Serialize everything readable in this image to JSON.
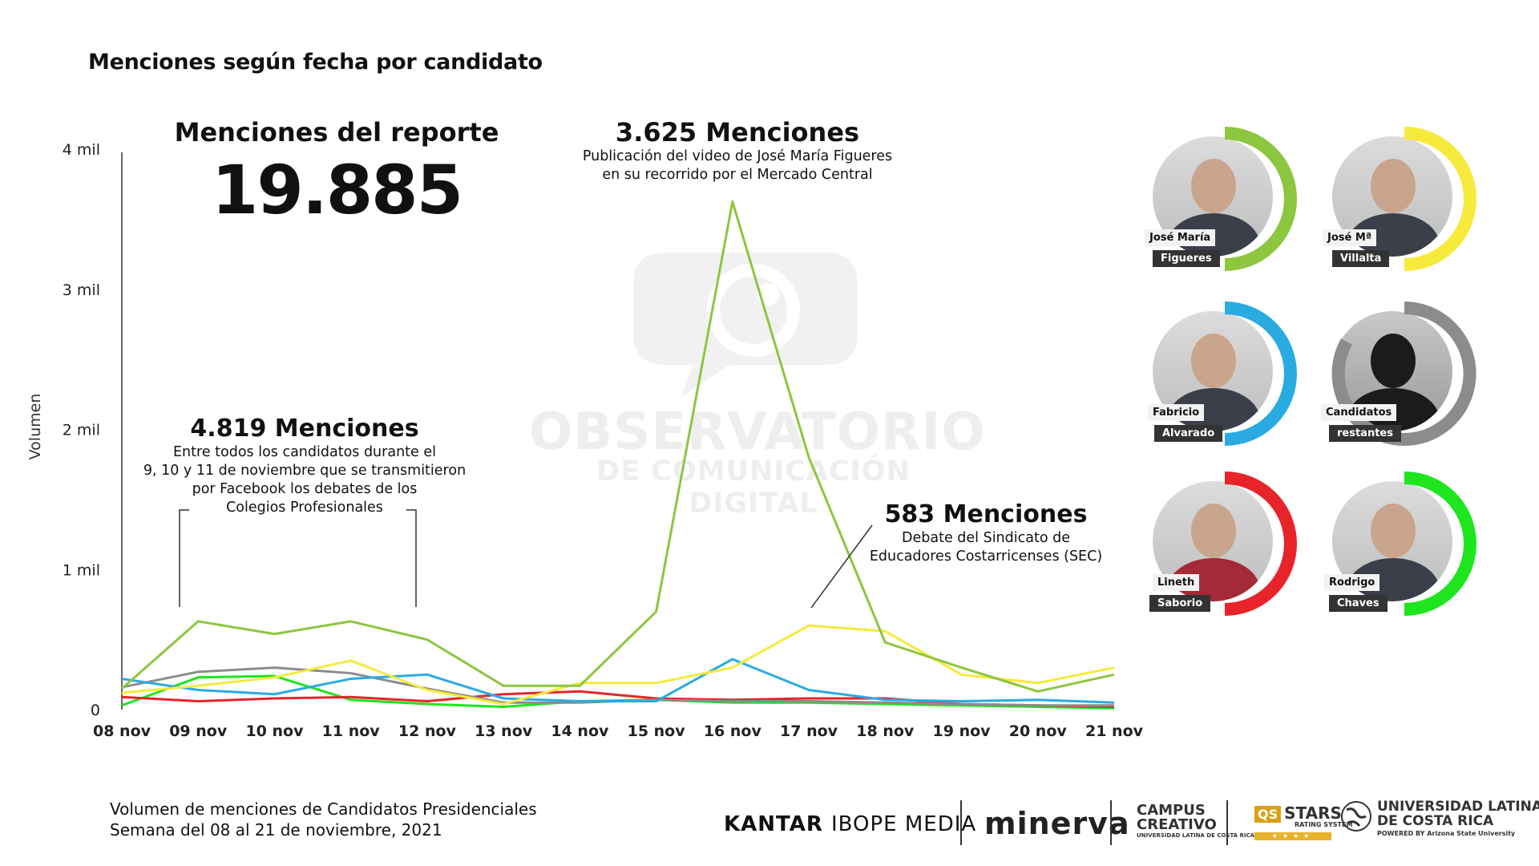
{
  "title": "Menciones según fecha por candidato",
  "total": {
    "label": "Menciones del reporte",
    "value": "19.885"
  },
  "annotations": {
    "peak": {
      "heading": "3.625 Menciones",
      "lines": [
        "Publicación del video de José María Figueres",
        "en su recorrido por el Mercado Central"
      ]
    },
    "debates": {
      "heading": "4.819 Menciones",
      "lines": [
        "Entre todos los candidatos durante el",
        "9, 10 y 11 de noviembre que se transmitieron",
        "por Facebook los debates de los",
        "Colegios Profesionales"
      ]
    },
    "sec": {
      "heading": "583 Menciones",
      "lines": [
        "Debate del Sindicato de",
        "Educadores Costarricenses (SEC)"
      ]
    }
  },
  "watermark": {
    "line1": "OBSERVATORIO",
    "line2": "DE COMUNICACIÓN DIGITAL"
  },
  "chart_data": {
    "type": "line",
    "ylabel": "Volumen",
    "ylim": [
      0,
      4000
    ],
    "yticks": [
      0,
      1000,
      2000,
      3000,
      4000
    ],
    "ytick_labels": [
      "0",
      "1 mil",
      "2 mil",
      "3 mil",
      "4 mil"
    ],
    "categories": [
      "08 nov",
      "09 nov",
      "10 nov",
      "11 nov",
      "12 nov",
      "13 nov",
      "14 nov",
      "15 nov",
      "16 nov",
      "17 nov",
      "18 nov",
      "19 nov",
      "20 nov",
      "21 nov"
    ],
    "grid": false,
    "series": [
      {
        "name": "José María Figueres",
        "color": "#8dc63f",
        "values": [
          150,
          630,
          540,
          630,
          500,
          170,
          170,
          700,
          3625,
          1800,
          480,
          300,
          130,
          250
        ]
      },
      {
        "name": "José Mª Villalta",
        "color": "#f6ea3c",
        "values": [
          120,
          170,
          230,
          350,
          140,
          40,
          190,
          190,
          300,
          600,
          560,
          250,
          190,
          300
        ]
      },
      {
        "name": "Fabricio Alvarado",
        "color": "#29abe2",
        "values": [
          220,
          140,
          110,
          220,
          250,
          80,
          60,
          60,
          360,
          140,
          70,
          60,
          70,
          50
        ]
      },
      {
        "name": "Candidatos restantes",
        "color": "#8c8c8c",
        "values": [
          160,
          270,
          300,
          260,
          150,
          50,
          50,
          70,
          60,
          60,
          50,
          40,
          30,
          30
        ]
      },
      {
        "name": "Lineth Saborio",
        "color": "#e8242b",
        "values": [
          90,
          60,
          80,
          90,
          60,
          110,
          130,
          80,
          70,
          80,
          80,
          40,
          30,
          20
        ]
      },
      {
        "name": "Rodrigo Chaves",
        "color": "#1ee51e",
        "values": [
          30,
          230,
          240,
          70,
          40,
          20,
          60,
          70,
          50,
          50,
          40,
          30,
          20,
          10
        ]
      }
    ]
  },
  "candidates": [
    {
      "first": "José María",
      "last": "Figueres",
      "color": "#8dc63f"
    },
    {
      "first": "José Mª",
      "last": "Villalta",
      "color": "#f6ea3c"
    },
    {
      "first": "Fabricio",
      "last": "Alvarado",
      "color": "#29abe2"
    },
    {
      "first": "Candidatos",
      "last": "restantes",
      "color": "#8c8c8c"
    },
    {
      "first": "Lineth",
      "last": "Saborio",
      "color": "#e8242b"
    },
    {
      "first": "Rodrigo",
      "last": "Chaves",
      "color": "#1ee51e"
    }
  ],
  "footer": {
    "line1": "Volumen de menciones de Candidatos Presidenciales",
    "line2": "Semana del 08 al 21 de noviembre, 2021"
  },
  "logos": {
    "kantar_bold": "KANTAR",
    "kantar_light": "IBOPE MEDIA",
    "minerva": "minerva",
    "campus_line1": "CAMPUS",
    "campus_line2": "CREATIVO",
    "campus_sub": "UNIVERSIDAD LATINA DE COSTA RICA",
    "stars_badge": "QS",
    "stars_title": "STARS",
    "stars_sub": "RATING SYSTEM",
    "stars_bar": "★★★★",
    "ulatina_line1": "UNIVERSIDAD LATINA",
    "ulatina_line2": "DE COSTA RICA",
    "ulatina_sub": "POWERED BY Arizona State University"
  }
}
